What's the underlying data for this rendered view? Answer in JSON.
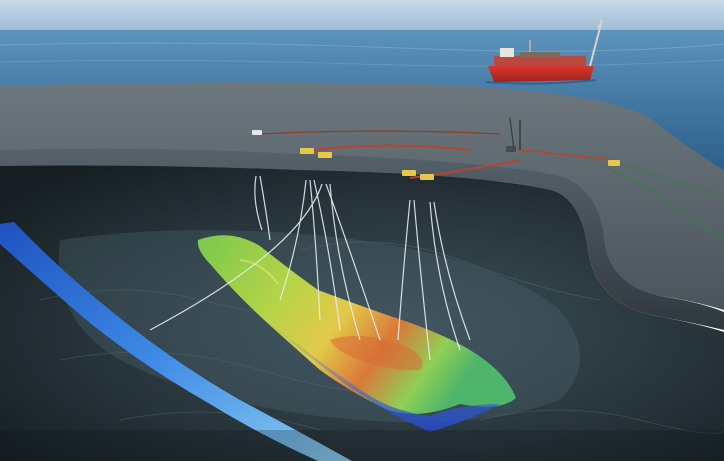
{
  "scene": {
    "subject": "offshore-oil-field-cross-section",
    "elements": {
      "sky": "sky",
      "sea": "sea-surface",
      "vessel": "fpso-vessel",
      "seabed": "seabed-platform",
      "rock": "subsurface-rock-cutaway",
      "reservoir": "oil-reservoir-heatmap",
      "aquifer": "blue-layer",
      "wells": "well-paths",
      "pipelines": "subsea-pipelines",
      "manifolds": "subsea-manifolds"
    },
    "colors": {
      "sky_top": "#c9dbe8",
      "sky_bottom": "#8fb3cf",
      "sea_top": "#4a86b3",
      "sea_bottom": "#2c5f8a",
      "seabed_top": "#5e6b72",
      "seabed_side": "#3b454b",
      "rock_dark": "#1f2a30",
      "rock_mid": "#3a4a52",
      "ship_hull": "#c73028",
      "reservoir_green": "#66c24a",
      "reservoir_yellow": "#e2d043",
      "reservoir_orange": "#d9783a",
      "reservoir_blue": "#2c5ed6",
      "aquifer_blue": "#3a78e0",
      "pipeline_red": "#b8432e",
      "manifold_yellow": "#e8c84a",
      "cable_green": "#3c7a4a",
      "well_white": "#e8eef2"
    }
  }
}
